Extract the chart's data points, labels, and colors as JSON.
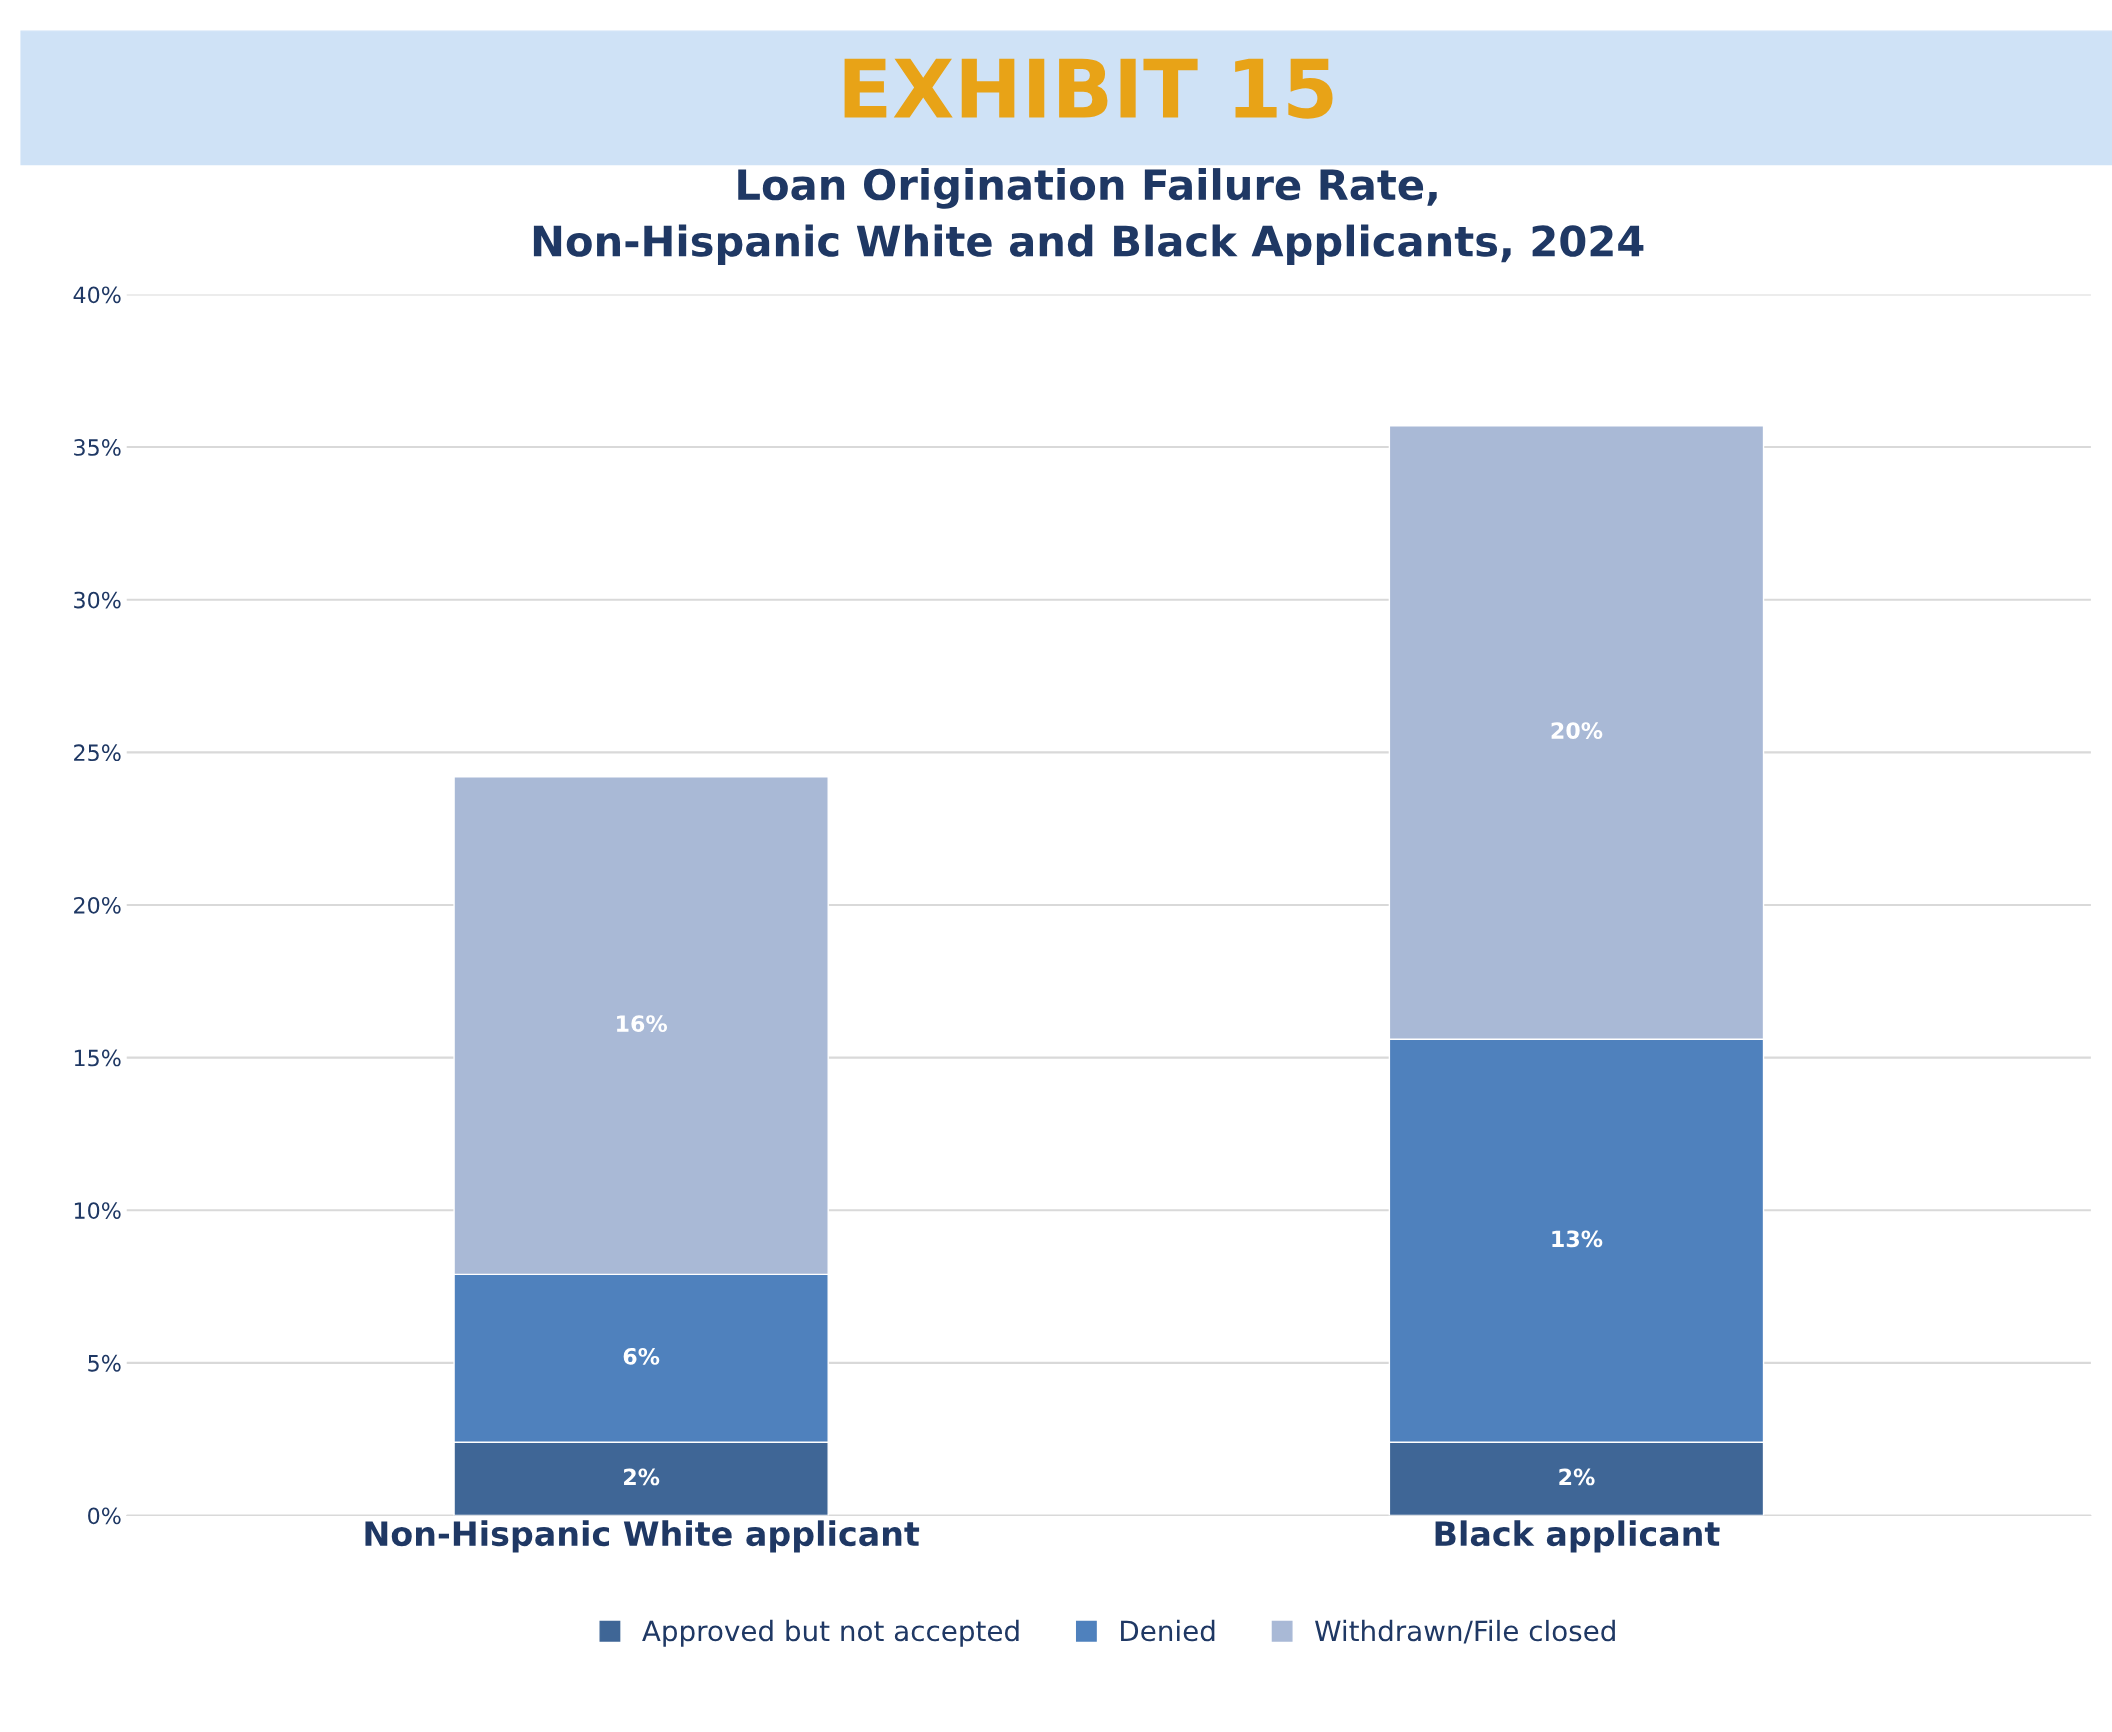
{
  "chart_data": {
    "type": "bar",
    "stacked": true,
    "title": "EXHIBIT 15",
    "subtitle": "Loan Origination Failure Rate,\nNon-Hispanic White and Black Applicants, 2024",
    "categories": [
      "Non-Hispanic White applicant",
      "Black applicant"
    ],
    "series": [
      {
        "name": "Approved but not accepted",
        "color": "#3f6696",
        "values": [
          2.4,
          2.4
        ],
        "value_labels": [
          "2%",
          "2%"
        ]
      },
      {
        "name": "Denied",
        "color": "#4f81bd",
        "values": [
          5.5,
          13.2
        ],
        "value_labels": [
          "6%",
          "13%"
        ]
      },
      {
        "name": "Withdrawn/File closed",
        "color": "#a9b9d6",
        "values": [
          16.3,
          20.1
        ],
        "value_labels": [
          "16%",
          "20%"
        ]
      }
    ],
    "ylim": [
      0,
      40
    ],
    "yticks": [
      {
        "value": 0,
        "label": "0%"
      },
      {
        "value": 5,
        "label": "5%"
      },
      {
        "value": 10,
        "label": "10%"
      },
      {
        "value": 15,
        "label": "15%"
      },
      {
        "value": 20,
        "label": "20%"
      },
      {
        "value": 25,
        "label": "25%"
      },
      {
        "value": 30,
        "label": "30%"
      },
      {
        "value": 35,
        "label": "35%"
      },
      {
        "value": 40,
        "label": "40%"
      }
    ],
    "grid": "y",
    "legend": "bottom"
  }
}
